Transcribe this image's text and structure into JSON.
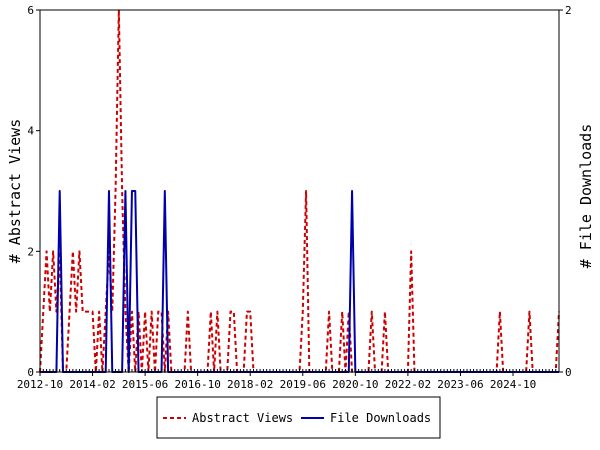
{
  "chart_data": {
    "type": "line",
    "title": "",
    "xlabel": "",
    "ylabel": "# Abstract Views",
    "y2label": "# File Downloads",
    "x_ticks": [
      "2012-10",
      "2014-02",
      "2015-06",
      "2016-10",
      "2018-02",
      "2019-06",
      "2020-10",
      "2022-02",
      "2023-06",
      "2024-10"
    ],
    "ylim": [
      0,
      6
    ],
    "y_ticks": [
      "0",
      "2",
      "4",
      "6"
    ],
    "y2lim": [
      0,
      2
    ],
    "y2_ticks": [
      "0",
      "2"
    ],
    "x_start": "2012-10",
    "x_end": "2025-12",
    "grid": false,
    "legend": "bottom",
    "series": [
      {
        "name": "Abstract Views",
        "axis": "left",
        "color": "#cc0000",
        "style": "dashed",
        "points": [
          [
            "2012-10",
            0
          ],
          [
            "2012-11",
            1
          ],
          [
            "2012-12",
            2
          ],
          [
            "2013-01",
            1
          ],
          [
            "2013-02",
            2
          ],
          [
            "2013-03",
            1
          ],
          [
            "2013-04",
            2
          ],
          [
            "2013-05",
            0
          ],
          [
            "2013-06",
            0
          ],
          [
            "2013-07",
            1
          ],
          [
            "2013-08",
            2
          ],
          [
            "2013-09",
            1
          ],
          [
            "2013-10",
            2
          ],
          [
            "2013-11",
            1
          ],
          [
            "2013-12",
            1
          ],
          [
            "2014-01",
            1
          ],
          [
            "2014-02",
            1
          ],
          [
            "2014-03",
            0
          ],
          [
            "2014-04",
            1
          ],
          [
            "2014-05",
            0
          ],
          [
            "2014-06",
            1
          ],
          [
            "2014-07",
            2
          ],
          [
            "2014-08",
            1
          ],
          [
            "2014-09",
            3
          ],
          [
            "2014-10",
            6
          ],
          [
            "2014-11",
            3
          ],
          [
            "2014-12",
            1
          ],
          [
            "2015-01",
            0
          ],
          [
            "2015-02",
            1
          ],
          [
            "2015-03",
            0
          ],
          [
            "2015-04",
            1
          ],
          [
            "2015-05",
            0
          ],
          [
            "2015-06",
            1
          ],
          [
            "2015-07",
            0
          ],
          [
            "2015-08",
            1
          ],
          [
            "2015-09",
            0
          ],
          [
            "2015-10",
            1
          ],
          [
            "2015-11",
            1
          ],
          [
            "2015-12",
            0
          ],
          [
            "2016-01",
            1
          ],
          [
            "2016-02",
            0
          ],
          [
            "2016-03",
            0
          ],
          [
            "2016-04",
            0
          ],
          [
            "2016-05",
            0
          ],
          [
            "2016-06",
            0
          ],
          [
            "2016-07",
            1
          ],
          [
            "2016-08",
            0
          ],
          [
            "2016-09",
            0
          ],
          [
            "2016-10",
            0
          ],
          [
            "2016-11",
            0
          ],
          [
            "2016-12",
            0
          ],
          [
            "2017-01",
            0
          ],
          [
            "2017-02",
            1
          ],
          [
            "2017-03",
            0
          ],
          [
            "2017-04",
            1
          ],
          [
            "2017-05",
            0
          ],
          [
            "2017-06",
            0
          ],
          [
            "2017-07",
            0
          ],
          [
            "2017-08",
            1
          ],
          [
            "2017-09",
            1
          ],
          [
            "2017-10",
            0
          ],
          [
            "2017-11",
            0
          ],
          [
            "2017-12",
            0
          ],
          [
            "2018-01",
            1
          ],
          [
            "2018-02",
            1
          ],
          [
            "2018-03",
            0
          ],
          [
            "2018-04",
            0
          ],
          [
            "2018-05",
            0
          ],
          [
            "2018-06",
            0
          ],
          [
            "2018-07",
            0
          ],
          [
            "2018-08",
            0
          ],
          [
            "2018-09",
            0
          ],
          [
            "2018-10",
            0
          ],
          [
            "2018-11",
            0
          ],
          [
            "2018-12",
            0
          ],
          [
            "2019-01",
            0
          ],
          [
            "2019-02",
            0
          ],
          [
            "2019-03",
            0
          ],
          [
            "2019-04",
            0
          ],
          [
            "2019-05",
            0
          ],
          [
            "2019-06",
            1
          ],
          [
            "2019-07",
            3
          ],
          [
            "2019-08",
            0
          ],
          [
            "2019-09",
            0
          ],
          [
            "2019-10",
            0
          ],
          [
            "2019-11",
            0
          ],
          [
            "2019-12",
            0
          ],
          [
            "2020-01",
            0
          ],
          [
            "2020-02",
            1
          ],
          [
            "2020-03",
            0
          ],
          [
            "2020-04",
            0
          ],
          [
            "2020-05",
            0
          ],
          [
            "2020-06",
            1
          ],
          [
            "2020-07",
            0
          ],
          [
            "2020-08",
            1
          ],
          [
            "2020-09",
            0
          ],
          [
            "2020-10",
            0
          ],
          [
            "2020-11",
            0
          ],
          [
            "2020-12",
            0
          ],
          [
            "2021-01",
            0
          ],
          [
            "2021-02",
            0
          ],
          [
            "2021-03",
            1
          ],
          [
            "2021-04",
            0
          ],
          [
            "2021-05",
            0
          ],
          [
            "2021-06",
            0
          ],
          [
            "2021-07",
            1
          ],
          [
            "2021-08",
            0
          ],
          [
            "2021-09",
            0
          ],
          [
            "2021-10",
            0
          ],
          [
            "2021-11",
            0
          ],
          [
            "2021-12",
            0
          ],
          [
            "2022-01",
            0
          ],
          [
            "2022-02",
            0
          ],
          [
            "2022-03",
            2
          ],
          [
            "2022-04",
            0
          ],
          [
            "2022-05",
            0
          ],
          [
            "2022-06",
            0
          ],
          [
            "2022-07",
            0
          ],
          [
            "2022-08",
            0
          ],
          [
            "2022-09",
            0
          ],
          [
            "2022-10",
            0
          ],
          [
            "2022-11",
            0
          ],
          [
            "2022-12",
            0
          ],
          [
            "2023-01",
            0
          ],
          [
            "2023-02",
            0
          ],
          [
            "2023-03",
            0
          ],
          [
            "2023-04",
            0
          ],
          [
            "2023-05",
            0
          ],
          [
            "2023-06",
            0
          ],
          [
            "2023-07",
            0
          ],
          [
            "2023-08",
            0
          ],
          [
            "2023-09",
            0
          ],
          [
            "2023-10",
            0
          ],
          [
            "2023-11",
            0
          ],
          [
            "2023-12",
            0
          ],
          [
            "2024-01",
            0
          ],
          [
            "2024-02",
            0
          ],
          [
            "2024-03",
            0
          ],
          [
            "2024-04",
            0
          ],
          [
            "2024-05",
            0
          ],
          [
            "2024-06",
            1
          ],
          [
            "2024-07",
            0
          ],
          [
            "2024-08",
            0
          ],
          [
            "2024-09",
            0
          ],
          [
            "2024-10",
            0
          ],
          [
            "2024-11",
            0
          ],
          [
            "2024-12",
            0
          ],
          [
            "2025-01",
            0
          ],
          [
            "2025-02",
            0
          ],
          [
            "2025-03",
            1
          ],
          [
            "2025-04",
            0
          ],
          [
            "2025-05",
            0
          ],
          [
            "2025-06",
            0
          ],
          [
            "2025-07",
            0
          ],
          [
            "2025-08",
            0
          ],
          [
            "2025-09",
            0
          ],
          [
            "2025-10",
            0
          ],
          [
            "2025-11",
            0
          ],
          [
            "2025-12",
            1
          ]
        ]
      },
      {
        "name": "File Downloads",
        "axis": "right",
        "color": "#0000aa",
        "style": "solid",
        "points": [
          [
            "2012-10",
            0
          ],
          [
            "2013-01",
            0
          ],
          [
            "2013-02",
            0
          ],
          [
            "2013-03",
            0
          ],
          [
            "2013-04",
            1
          ],
          [
            "2013-05",
            0
          ],
          [
            "2013-06",
            0
          ],
          [
            "2014-01",
            0
          ],
          [
            "2014-02",
            0
          ],
          [
            "2014-03",
            0
          ],
          [
            "2014-04",
            0
          ],
          [
            "2014-05",
            0
          ],
          [
            "2014-06",
            0
          ],
          [
            "2014-07",
            1
          ],
          [
            "2014-08",
            0
          ],
          [
            "2014-09",
            0
          ],
          [
            "2014-10",
            0
          ],
          [
            "2014-11",
            0
          ],
          [
            "2014-12",
            1
          ],
          [
            "2015-01",
            0
          ],
          [
            "2015-02",
            1
          ],
          [
            "2015-03",
            1
          ],
          [
            "2015-04",
            0
          ],
          [
            "2015-05",
            0
          ],
          [
            "2015-06",
            0
          ],
          [
            "2015-07",
            0
          ],
          [
            "2015-08",
            0
          ],
          [
            "2015-09",
            0
          ],
          [
            "2015-10",
            0
          ],
          [
            "2015-11",
            0
          ],
          [
            "2015-12",
            1
          ],
          [
            "2016-01",
            0
          ],
          [
            "2016-02",
            0
          ],
          [
            "2020-06",
            0
          ],
          [
            "2020-07",
            0
          ],
          [
            "2020-08",
            0
          ],
          [
            "2020-09",
            1
          ],
          [
            "2020-10",
            0
          ],
          [
            "2020-11",
            0
          ],
          [
            "2025-12",
            0
          ]
        ]
      }
    ]
  }
}
